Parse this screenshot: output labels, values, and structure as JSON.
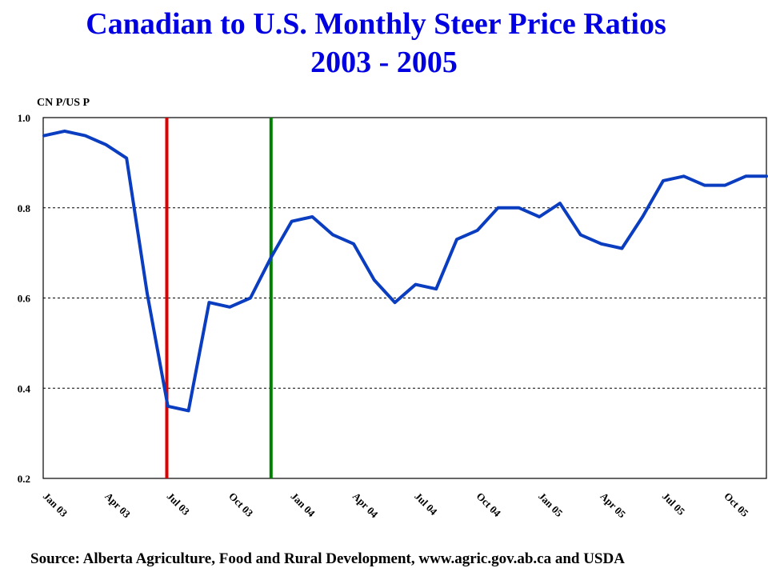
{
  "title_line1": "Canadian to U.S. Monthly Steer Price Ratios",
  "title_line2": "2003 - 2005",
  "source": "Source:  Alberta Agriculture, Food and Rural Development, www.agric.gov.ab.ca and USDA",
  "chart_data": {
    "type": "line",
    "ylabel": "CN P/US P",
    "ylim": [
      0.2,
      1.0
    ],
    "yticks": [
      "1.0",
      "0.8",
      "0.6",
      "0.4",
      "0.2"
    ],
    "grid": "horizontal dashed",
    "x_tick_labels": [
      "Jan 03",
      "Apr 03",
      "Jul 03",
      "Oct 03",
      "Jan 04",
      "Apr 04",
      "Jul 04",
      "Oct 04",
      "Jan 05",
      "Apr 05",
      "Jul 05",
      "Oct 05"
    ],
    "series": [
      {
        "color": "#0a3dbf",
        "values": [
          0.96,
          0.97,
          0.96,
          0.94,
          0.91,
          0.61,
          0.36,
          0.35,
          0.59,
          0.58,
          0.6,
          0.69,
          0.77,
          0.78,
          0.74,
          0.72,
          0.64,
          0.59,
          0.63,
          0.62,
          0.73,
          0.75,
          0.8,
          0.8,
          0.78,
          0.81,
          0.74,
          0.72,
          0.71,
          0.78,
          0.86,
          0.87,
          0.85,
          0.85,
          0.87,
          0.87
        ]
      }
    ],
    "vertical_markers": [
      {
        "color": "#e00000",
        "month_index": 5.95
      },
      {
        "color": "#008000",
        "month_index": 11.0
      }
    ]
  }
}
